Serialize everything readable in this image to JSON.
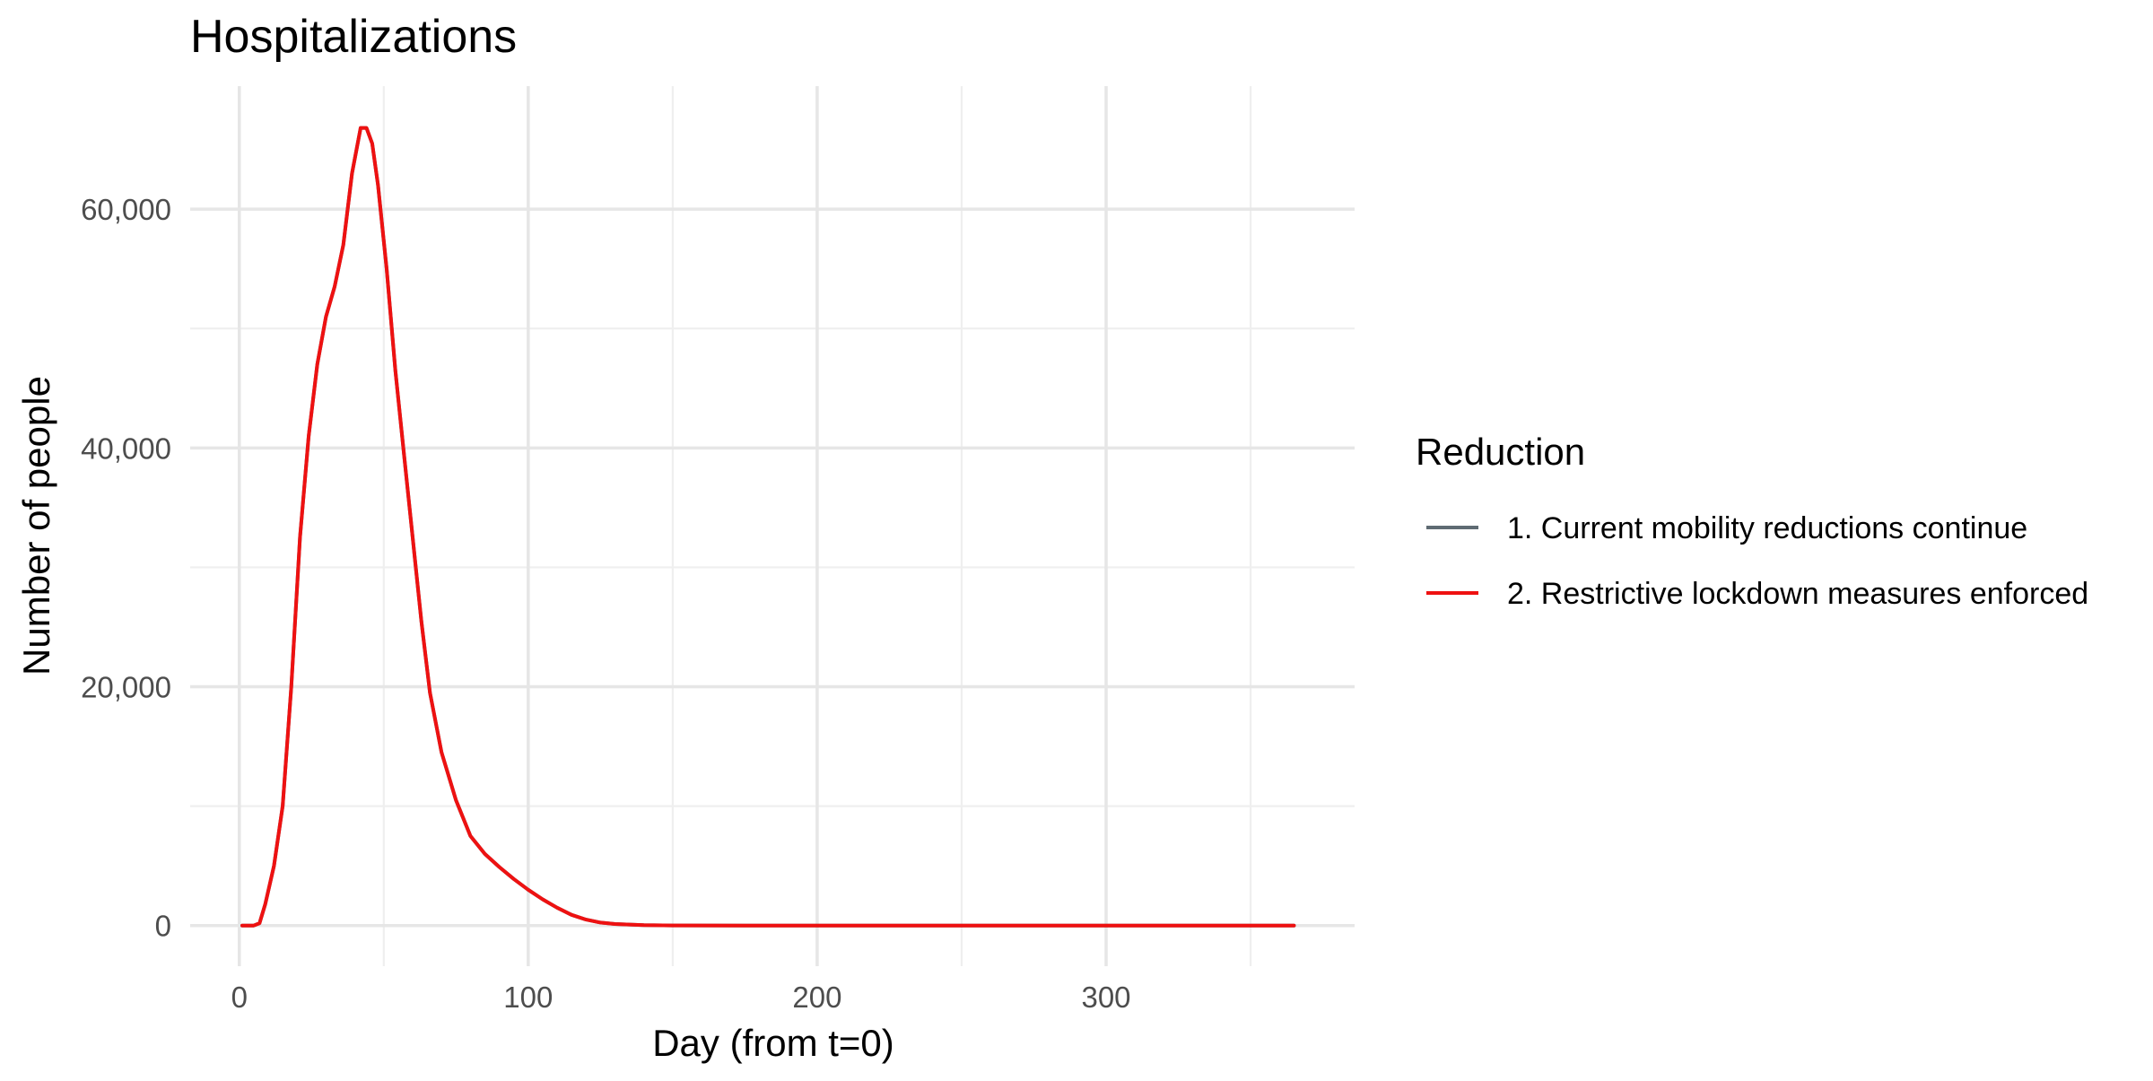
{
  "chart_data": {
    "type": "line",
    "title": "Hospitalizations",
    "xlabel": "Day (from t=0)",
    "ylabel": "Number of people",
    "xlim": [
      -17,
      386
    ],
    "ylim": [
      -3400,
      70300
    ],
    "x_ticks": [
      0,
      100,
      200,
      300
    ],
    "x_tick_labels": [
      "0",
      "100",
      "200",
      "300"
    ],
    "x_minor_ticks": [
      50,
      150,
      250,
      350
    ],
    "y_ticks": [
      0,
      20000,
      40000,
      60000
    ],
    "y_tick_labels": [
      "0",
      "20,000",
      "40,000",
      "60,000"
    ],
    "y_minor_ticks": [
      10000,
      30000,
      50000
    ],
    "grid": true,
    "legend": {
      "title": "Reduction",
      "position": "right"
    },
    "series": [
      {
        "name": "1. Current mobility reductions continue",
        "color": "#5f6b73",
        "x": [
          1,
          5,
          7,
          9,
          12,
          15,
          18,
          21,
          24,
          27,
          30,
          33,
          36,
          39,
          42,
          44,
          46,
          48,
          51,
          54,
          57,
          60,
          63,
          66,
          70,
          75,
          80,
          85,
          90,
          95,
          100,
          105,
          110,
          115,
          120,
          125,
          130,
          140,
          150,
          175,
          200,
          250,
          300,
          365
        ],
        "y": [
          0,
          0,
          200,
          1800,
          5000,
          10000,
          20000,
          32500,
          41000,
          47000,
          51000,
          53500,
          57000,
          63000,
          66800,
          66800,
          65500,
          62000,
          55000,
          46500,
          39500,
          32500,
          25500,
          19500,
          14500,
          10500,
          7500,
          6000,
          4900,
          3900,
          3000,
          2200,
          1500,
          900,
          500,
          250,
          130,
          40,
          10,
          0,
          0,
          0,
          0,
          0
        ]
      },
      {
        "name": "2. Restrictive lockdown measures enforced",
        "color": "#ee1111",
        "x": [
          1,
          5,
          7,
          9,
          12,
          15,
          18,
          21,
          24,
          27,
          30,
          33,
          36,
          39,
          42,
          44,
          46,
          48,
          51,
          54,
          57,
          60,
          63,
          66,
          70,
          75,
          80,
          85,
          90,
          95,
          100,
          105,
          110,
          115,
          120,
          125,
          130,
          140,
          150,
          175,
          200,
          250,
          300,
          365
        ],
        "y": [
          0,
          0,
          200,
          1800,
          5000,
          10000,
          20000,
          32500,
          41000,
          47000,
          51000,
          53500,
          57000,
          63000,
          66800,
          66800,
          65500,
          62000,
          55000,
          46500,
          39500,
          32500,
          25500,
          19500,
          14500,
          10500,
          7500,
          6000,
          4900,
          3900,
          3000,
          2200,
          1500,
          900,
          500,
          250,
          130,
          40,
          10,
          0,
          0,
          0,
          0,
          0
        ]
      }
    ]
  }
}
